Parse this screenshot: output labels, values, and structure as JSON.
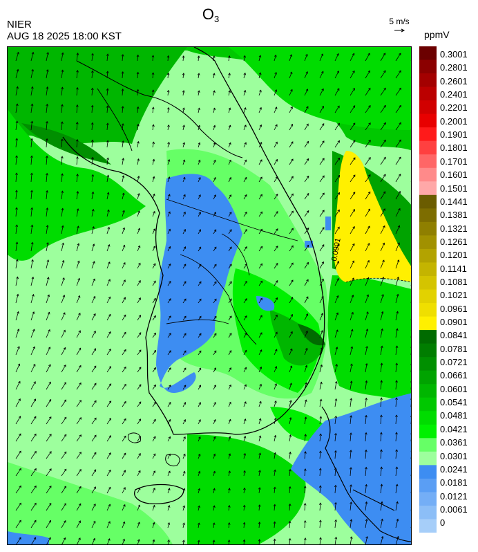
{
  "title": "O",
  "title_sub": "3",
  "agency": "NIER",
  "datetime": "AUG 18 2025 18:00 KST",
  "wind_ref_label": "5 m/s",
  "unit": "ppmV",
  "contour_label": "0.0901",
  "colorbar": {
    "ticks": [
      "0.3001",
      "0.2801",
      "0.2601",
      "0.2401",
      "0.2201",
      "0.2001",
      "0.1901",
      "0.1801",
      "0.1701",
      "0.1601",
      "0.1501",
      "0.1441",
      "0.1381",
      "0.1321",
      "0.1261",
      "0.1201",
      "0.1141",
      "0.1081",
      "0.1021",
      "0.0961",
      "0.0901",
      "0.0841",
      "0.0781",
      "0.0721",
      "0.0661",
      "0.0601",
      "0.0541",
      "0.0481",
      "0.0421",
      "0.0361",
      "0.0301",
      "0.0241",
      "0.0181",
      "0.0121",
      "0.0061",
      "0"
    ],
    "colors": [
      "#6b0000",
      "#8b0000",
      "#a30000",
      "#bb0000",
      "#d10000",
      "#e80000",
      "#ff1a1a",
      "#ff4040",
      "#ff6666",
      "#ff8a8a",
      "#ffa8a8",
      "#6b5c00",
      "#7d6d00",
      "#8f7f00",
      "#a19100",
      "#b3a300",
      "#c4b400",
      "#d4c400",
      "#e2d200",
      "#efdf00",
      "#fff000",
      "#006b00",
      "#007d00",
      "#008f00",
      "#00a300",
      "#00b600",
      "#00c800",
      "#00dc00",
      "#00f000",
      "#66ff66",
      "#9dff9d",
      "#3d8df2",
      "#5a9ef4",
      "#74aef6",
      "#8cbef7",
      "#a6cef9"
    ]
  }
}
